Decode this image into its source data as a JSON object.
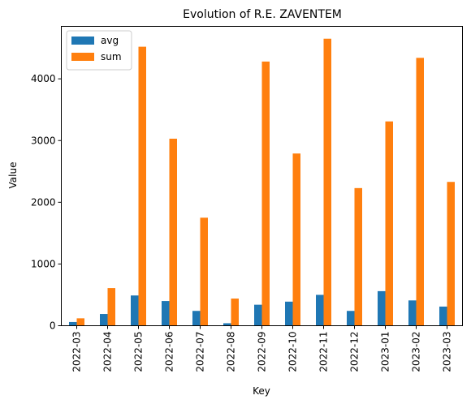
{
  "chart_data": {
    "type": "bar",
    "title": "Evolution of R.E. ZAVENTEM",
    "xlabel": "Key",
    "ylabel": "Value",
    "ylim": [
      0,
      4850
    ],
    "yticks": [
      0,
      1000,
      2000,
      3000,
      4000
    ],
    "legend_position": "top-left",
    "grid": false,
    "categories": [
      "2022-03",
      "2022-04",
      "2022-05",
      "2022-06",
      "2022-07",
      "2022-08",
      "2022-09",
      "2022-10",
      "2022-11",
      "2022-12",
      "2023-01",
      "2023-02",
      "2023-03"
    ],
    "series": [
      {
        "name": "avg",
        "color": "#1f77b4",
        "values": [
          60,
          190,
          490,
          400,
          240,
          40,
          340,
          390,
          500,
          240,
          560,
          410,
          310
        ]
      },
      {
        "name": "sum",
        "color": "#ff7f0e",
        "values": [
          120,
          610,
          4520,
          3030,
          1750,
          440,
          4280,
          2790,
          4650,
          2230,
          3310,
          4340,
          2330
        ]
      }
    ]
  }
}
